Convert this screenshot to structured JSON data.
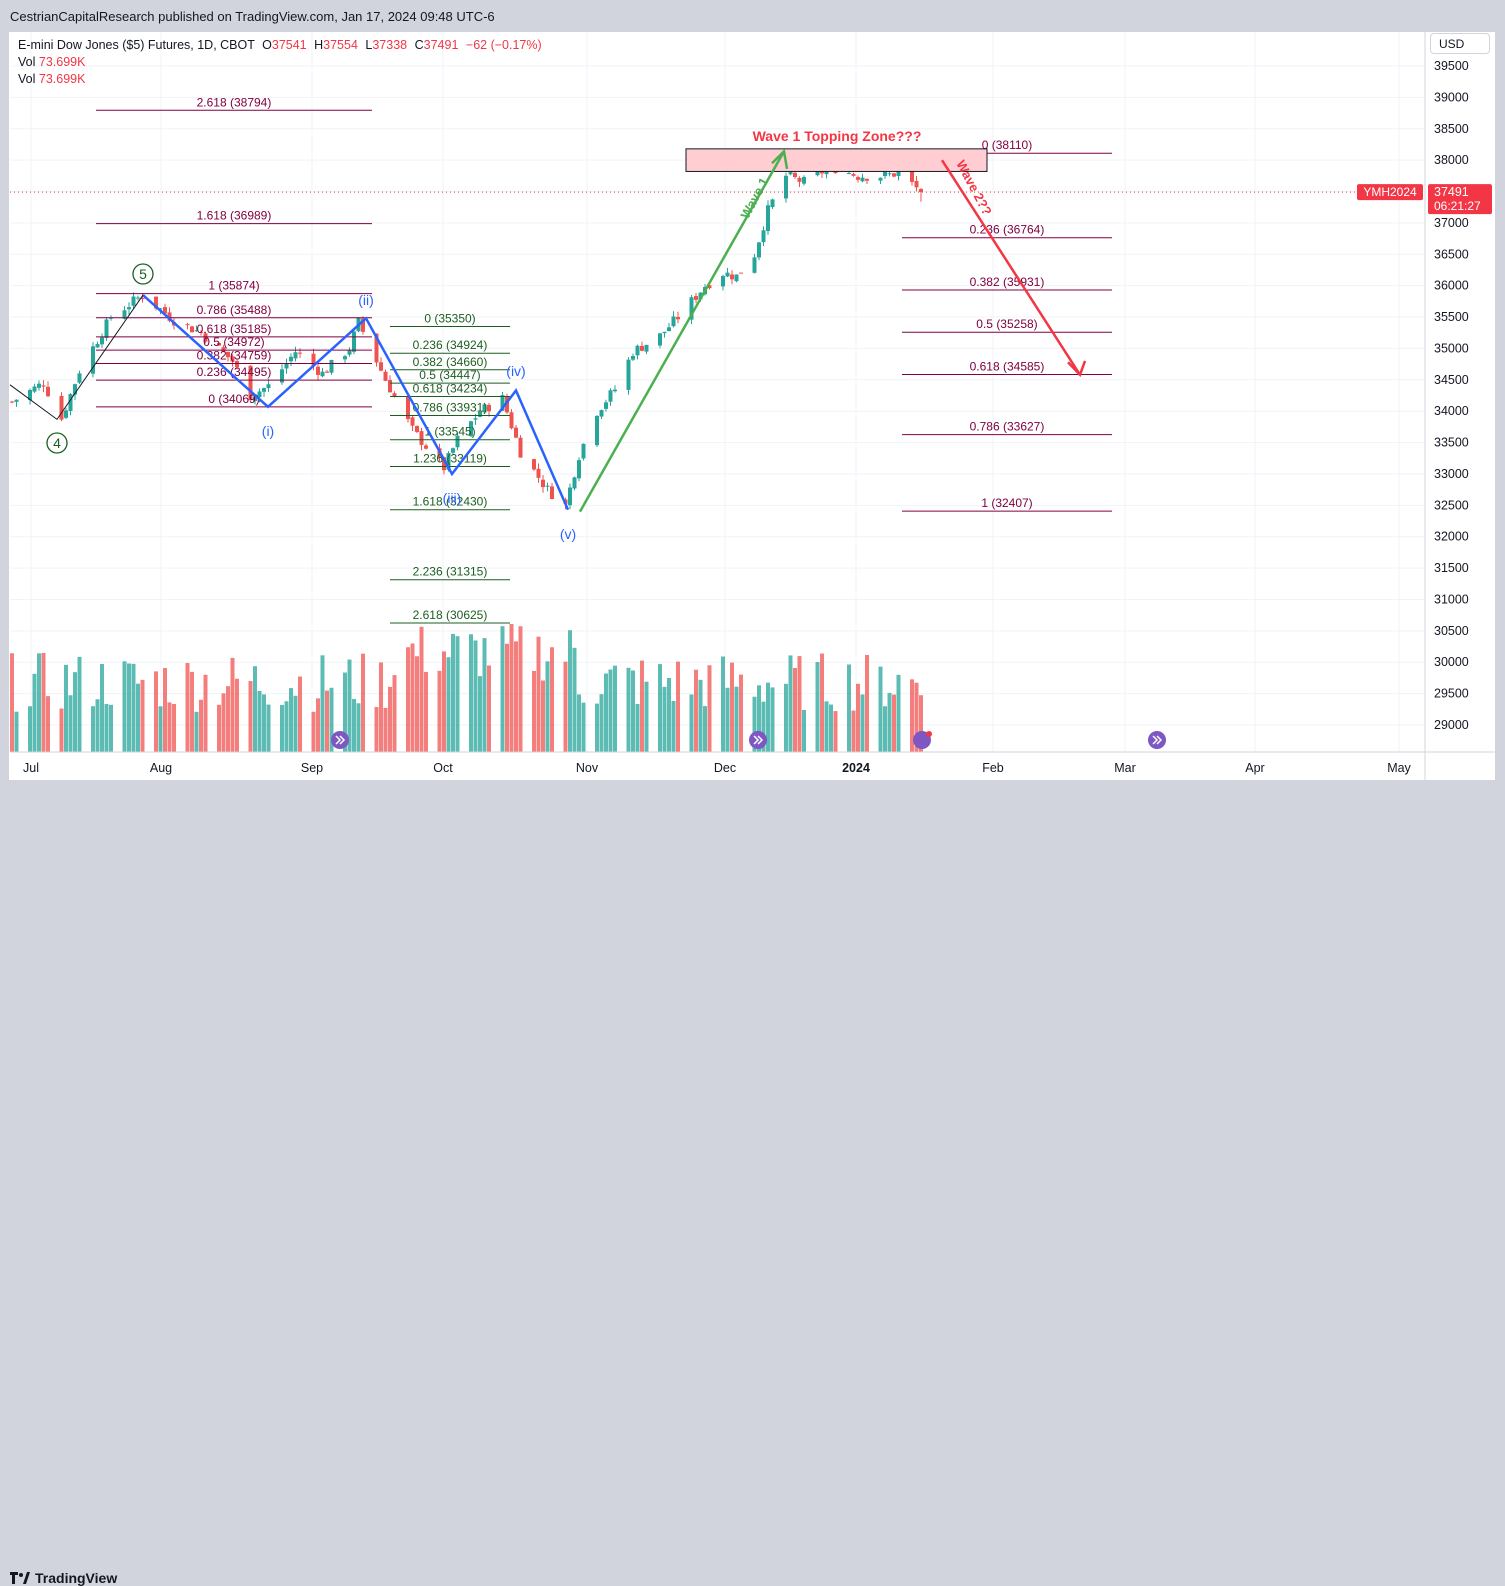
{
  "publisher_line": "CestrianCapitalResearch published on TradingView.com, Jan 17, 2024 09:48 UTC-6",
  "brand": "TradingView",
  "legend": {
    "symbol": "E-mini Dow Jones ($5) Futures, 1D, CBOT",
    "o_label": "O",
    "o_val": "37541",
    "h_label": "H",
    "h_val": "37554",
    "l_label": "L",
    "l_val": "37338",
    "c_label": "C",
    "c_val": "37491",
    "change": "−62 (−0.17%)",
    "vol_label": "Vol",
    "vol_val": "73.699K",
    "vol2_label": "Vol",
    "vol2_val": "73.699K"
  },
  "currency": "USD",
  "price_tag": {
    "symbol": "YMH2024",
    "price": "37491",
    "countdown": "06:21:27",
    "value": 37491
  },
  "colors": {
    "up": "#26a69a",
    "down": "#ef5350",
    "fib_purple": "#800040",
    "fib_green": "#1b5e20",
    "wave_blue": "#2962ff",
    "wave_green": "#4caf50",
    "wave_red": "#f23645",
    "zone": "#ffcdd2"
  },
  "chart_data": {
    "type": "candlestick",
    "y_range": [
      28600,
      40000
    ],
    "y_ticks": [
      29000,
      29500,
      30000,
      30500,
      31000,
      31500,
      32000,
      32500,
      33000,
      33500,
      34000,
      34500,
      35000,
      35500,
      36000,
      36500,
      37000,
      37500,
      38000,
      38500,
      39000,
      39500
    ],
    "x_labels": [
      "Jul",
      "Aug",
      "Sep",
      "Oct",
      "Nov",
      "Dec",
      "2024",
      "Feb",
      "Mar",
      "Apr",
      "May"
    ],
    "close_path": [
      {
        "d": "2023-06-29",
        "p": 34150
      },
      {
        "d": "2023-07-06",
        "p": 34450
      },
      {
        "d": "2023-07-10",
        "p": 33880
      },
      {
        "d": "2023-07-14",
        "p": 34650
      },
      {
        "d": "2023-07-21",
        "p": 35500
      },
      {
        "d": "2023-07-28",
        "p": 35850
      },
      {
        "d": "2023-08-04",
        "p": 35450
      },
      {
        "d": "2023-08-10",
        "p": 35250
      },
      {
        "d": "2023-08-17",
        "p": 34800
      },
      {
        "d": "2023-08-21",
        "p": 34250
      },
      {
        "d": "2023-08-25",
        "p": 34400
      },
      {
        "d": "2023-08-31",
        "p": 34950
      },
      {
        "d": "2023-09-06",
        "p": 34600
      },
      {
        "d": "2023-09-12",
        "p": 35000
      },
      {
        "d": "2023-09-14",
        "p": 35420
      },
      {
        "d": "2023-09-20",
        "p": 34500
      },
      {
        "d": "2023-09-26",
        "p": 33700
      },
      {
        "d": "2023-10-03",
        "p": 33100
      },
      {
        "d": "2023-10-06",
        "p": 33550
      },
      {
        "d": "2023-10-11",
        "p": 34000
      },
      {
        "d": "2023-10-16",
        "p": 34200
      },
      {
        "d": "2023-10-20",
        "p": 33350
      },
      {
        "d": "2023-10-26",
        "p": 32750
      },
      {
        "d": "2023-10-30",
        "p": 32500
      },
      {
        "d": "2023-11-02",
        "p": 33300
      },
      {
        "d": "2023-11-06",
        "p": 34000
      },
      {
        "d": "2023-11-10",
        "p": 34350
      },
      {
        "d": "2023-11-14",
        "p": 34950
      },
      {
        "d": "2023-11-20",
        "p": 35200
      },
      {
        "d": "2023-11-24",
        "p": 35500
      },
      {
        "d": "2023-11-30",
        "p": 36000
      },
      {
        "d": "2023-12-04",
        "p": 36200
      },
      {
        "d": "2023-12-07",
        "p": 36150
      },
      {
        "d": "2023-12-11",
        "p": 36500
      },
      {
        "d": "2023-12-14",
        "p": 37200
      },
      {
        "d": "2023-12-18",
        "p": 37750
      },
      {
        "d": "2023-12-22",
        "p": 37650
      },
      {
        "d": "2023-12-28",
        "p": 37900
      },
      {
        "d": "2024-01-03",
        "p": 37750
      },
      {
        "d": "2024-01-09",
        "p": 37750
      },
      {
        "d": "2024-01-12",
        "p": 37800
      },
      {
        "d": "2024-01-17",
        "p": 37491
      }
    ],
    "volume_note": "volume bars shown at bottom, last bar 73.699K"
  },
  "fib_left": [
    {
      "label": "2.618 (38794)",
      "price": 38794
    },
    {
      "label": "1.618 (36989)",
      "price": 36989
    },
    {
      "label": "1 (35874)",
      "price": 35874
    },
    {
      "label": "0.786 (35488)",
      "price": 35488
    },
    {
      "label": "0.618 (35185)",
      "price": 35185
    },
    {
      "label": "0.5 (34972)",
      "price": 34972
    },
    {
      "label": "0.382 (34759)",
      "price": 34759
    },
    {
      "label": "0.236 (34495)",
      "price": 34495
    },
    {
      "label": "0 (34069)",
      "price": 34069
    }
  ],
  "fib_mid": [
    {
      "label": "0 (35350)",
      "price": 35350
    },
    {
      "label": "0.236 (34924)",
      "price": 34924
    },
    {
      "label": "0.382 (34660)",
      "price": 34660
    },
    {
      "label": "0.5 (34447)",
      "price": 34447
    },
    {
      "label": "0.618 (34234)",
      "price": 34234
    },
    {
      "label": "0.786 (33931)",
      "price": 33931
    },
    {
      "label": "1 (33545)",
      "price": 33545
    },
    {
      "label": "1.236 (33119)",
      "price": 33119
    },
    {
      "label": "1.618 (32430)",
      "price": 32430
    },
    {
      "label": "2.236 (31315)",
      "price": 31315
    },
    {
      "label": "2.618 (30625)",
      "price": 30625
    }
  ],
  "fib_right": [
    {
      "label": "0 (38110)",
      "price": 38110
    },
    {
      "label": "0.236 (36764)",
      "price": 36764
    },
    {
      "label": "0.382 (35931)",
      "price": 35931
    },
    {
      "label": "0.5 (35258)",
      "price": 35258
    },
    {
      "label": "0.618 (34585)",
      "price": 34585
    },
    {
      "label": "0.786 (33627)",
      "price": 33627
    },
    {
      "label": "1 (32407)",
      "price": 32407
    }
  ],
  "wave_labels": {
    "w4": "4",
    "w5": "5",
    "i": "(i)",
    "ii": "(ii)",
    "iii": "(iii)",
    "iv": "(iv)",
    "v": "(v)",
    "wave1": "Wave 1",
    "wave2": "Wave 2??",
    "zone": "Wave 1 Topping Zone???"
  }
}
